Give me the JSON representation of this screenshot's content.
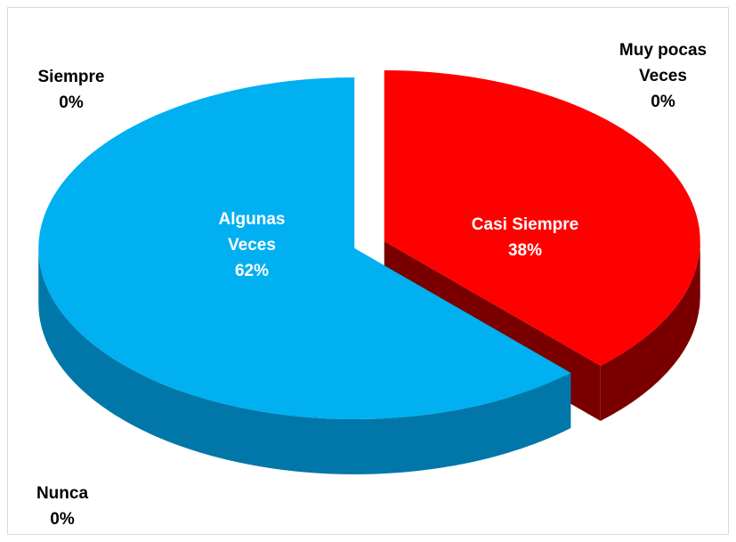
{
  "chart_data": {
    "type": "pie3d",
    "categories": [
      "Siempre",
      "Casi Siempre",
      "Algunas Veces",
      "Muy pocas Veces",
      "Nunca"
    ],
    "values": [
      0,
      38,
      62,
      0,
      0
    ],
    "value_labels": [
      "0%",
      "38%",
      "62%",
      "0%",
      "0%"
    ],
    "colors": [
      "#4a7ebb",
      "#ff0000",
      "#00b0f0",
      "#4a7ebb",
      "#4a7ebb"
    ],
    "side_colors": [
      "#2f5c8f",
      "#7a0000",
      "#0077a8",
      "#2f5c8f",
      "#2f5c8f"
    ]
  }
}
